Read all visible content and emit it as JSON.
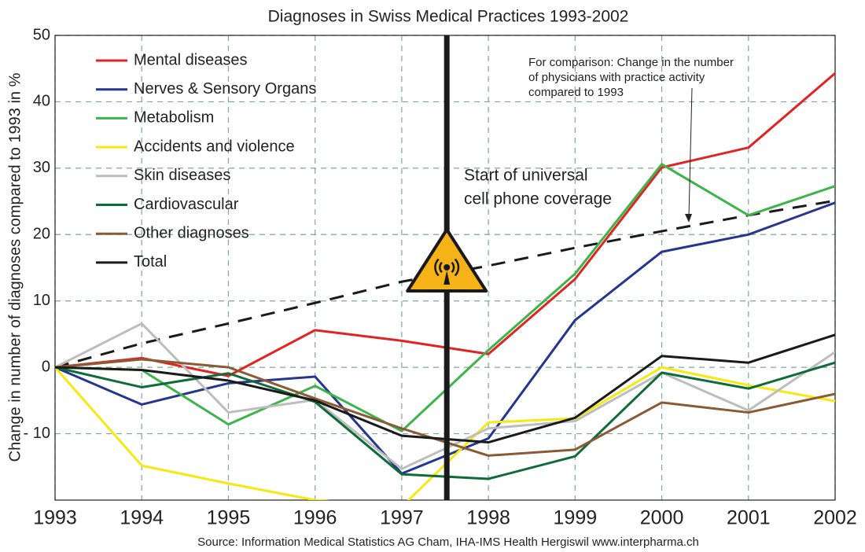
{
  "chart_data": {
    "type": "line",
    "title": "Diagnoses in Swiss Medical Practices 1993-2002",
    "y_label": "Change in number of diagnoses compared to 1993 in %",
    "source": "Source: Information Medical Statistics AG Cham, IHA-IMS Health Hergiswil www.interpharma.ch",
    "x": [
      1993,
      1994,
      1995,
      1996,
      1997,
      1998,
      1999,
      2000,
      2001,
      2002
    ],
    "xlim": [
      1993,
      2002
    ],
    "xticks": [
      1993,
      1994,
      1995,
      1996,
      1997,
      1998,
      1999,
      2000,
      2001,
      2002
    ],
    "ylim": [
      -20,
      50
    ],
    "yticks": [
      {
        "value": -10,
        "label": "- 10"
      },
      0,
      10,
      20,
      30,
      40,
      50
    ],
    "grid": true,
    "legend": "upper left",
    "series": [
      {
        "name": "Mental diseases",
        "color": "#e02424",
        "values": [
          0,
          1.4,
          -1.3,
          5.6,
          4,
          2.0,
          13.3,
          30.1,
          33.1,
          44.3
        ]
      },
      {
        "name": "Nerves & Sensory Organs",
        "color": "#26358f",
        "values": [
          0,
          -5.6,
          -2.4,
          -1.4,
          -16,
          -10.7,
          7.1,
          17.4,
          20,
          24.8
        ]
      },
      {
        "name": "Metabolism",
        "color": "#3cb44a",
        "values": [
          0,
          -0.4,
          -8.6,
          -2.8,
          -9.6,
          2.6,
          14.1,
          30.6,
          22.9,
          27.3
        ]
      },
      {
        "name": "Accidents and violence",
        "color": "#f5e911",
        "values": [
          0,
          -14.8,
          -17.5,
          -20,
          -21,
          -8.3,
          -7.7,
          0,
          -2.7,
          -5.1
        ]
      },
      {
        "name": "Skin diseases",
        "color": "#bdbdbd",
        "values": [
          0,
          6.6,
          -6.8,
          -4.9,
          -15.3,
          -9.2,
          -8.1,
          -0.8,
          -6.5,
          2.3
        ]
      },
      {
        "name": "Cardiovascular",
        "color": "#0f6b3a",
        "values": [
          0,
          -3,
          -0.9,
          -5.2,
          -16.1,
          -16.8,
          -13.4,
          -0.8,
          -3.2,
          0.7
        ]
      },
      {
        "name": "Other diagnoses",
        "color": "#8b5a34",
        "values": [
          0,
          1.2,
          0,
          -4.7,
          -9.2,
          -13.3,
          -12.4,
          -5.3,
          -6.8,
          -4
        ]
      },
      {
        "name": "Total",
        "color": "#1a1a1a",
        "values": [
          0,
          -0.4,
          -2,
          -5,
          -10.3,
          -11.3,
          -7.6,
          1.7,
          0.7,
          4.9
        ]
      }
    ],
    "comparison": {
      "color": "#1a1a1a",
      "dashed": true,
      "values": [
        0,
        3.6,
        6.6,
        9.7,
        12.9,
        15.3,
        18,
        20.5,
        22.9,
        25.1
      ],
      "text": [
        "For comparison: Change in the number",
        "of physicians with practice activity",
        "compared to 1993"
      ]
    },
    "event": {
      "x": 1997.52,
      "text": [
        "Start of universal",
        "cell phone coverage"
      ]
    }
  }
}
